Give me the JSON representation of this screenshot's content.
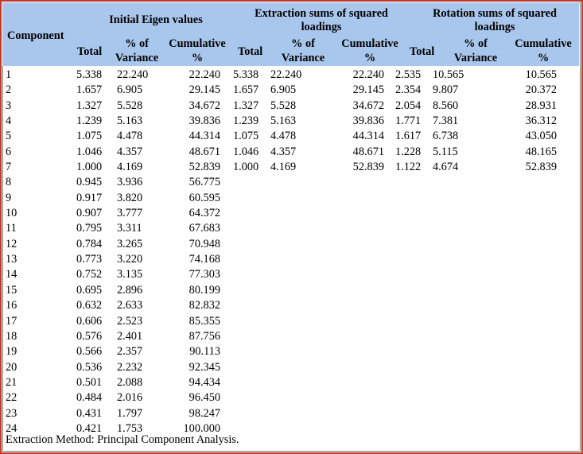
{
  "header": {
    "component": "Component",
    "group1": {
      "title": "Initial Eigen values",
      "total": "Total",
      "pct_line1": "% of",
      "pct_line2": "Variance",
      "cum_line1": "Cumulative",
      "cum_line2": "%"
    },
    "group2": {
      "title_line1": "Extraction sums of squared",
      "title_line2": "loadings",
      "total": "Total",
      "pct_line1": "% of",
      "pct_line2": "Variance",
      "cum_line1": "Cumulative",
      "cum_line2": "%"
    },
    "group3": {
      "title_line1": "Rotation sums of squared",
      "title_line2": "loadings",
      "total": "Total",
      "pct_line1": "% of",
      "pct_line2": "Variance",
      "cum_line1": "Cumulative",
      "cum_line2": "%"
    }
  },
  "rows": [
    [
      "1",
      "5.338",
      "22.240",
      "22.240",
      "5.338",
      "22.240",
      "22.240",
      "2.535",
      "10.565",
      "10.565"
    ],
    [
      "2",
      "1.657",
      "6.905",
      "29.145",
      "1.657",
      "6.905",
      "29.145",
      "2.354",
      "9.807",
      "20.372"
    ],
    [
      "3",
      "1.327",
      "5.528",
      "34.672",
      "1.327",
      "5.528",
      "34.672",
      "2.054",
      "8.560",
      "28.931"
    ],
    [
      "4",
      "1.239",
      "5.163",
      "39.836",
      "1.239",
      "5.163",
      "39.836",
      "1.771",
      "7.381",
      "36.312"
    ],
    [
      "5",
      "1.075",
      "4.478",
      "44.314",
      "1.075",
      "4.478",
      "44.314",
      "1.617",
      "6.738",
      "43.050"
    ],
    [
      "6",
      "1.046",
      "4.357",
      "48.671",
      "1.046",
      "4.357",
      "48.671",
      "1.228",
      "5.115",
      "48.165"
    ],
    [
      "7",
      "1.000",
      "4.169",
      "52.839",
      "1.000",
      "4.169",
      "52.839",
      "1.122",
      "4.674",
      "52.839"
    ],
    [
      "8",
      "0.945",
      "3.936",
      "56.775",
      "",
      "",
      "",
      "",
      "",
      ""
    ],
    [
      "9",
      "0.917",
      "3.820",
      "60.595",
      "",
      "",
      "",
      "",
      "",
      ""
    ],
    [
      "10",
      "0.907",
      "3.777",
      "64.372",
      "",
      "",
      "",
      "",
      "",
      ""
    ],
    [
      "11",
      "0.795",
      "3.311",
      "67.683",
      "",
      "",
      "",
      "",
      "",
      ""
    ],
    [
      "12",
      "0.784",
      "3.265",
      "70.948",
      "",
      "",
      "",
      "",
      "",
      ""
    ],
    [
      "13",
      "0.773",
      "3.220",
      "74.168",
      "",
      "",
      "",
      "",
      "",
      ""
    ],
    [
      "14",
      "0.752",
      "3.135",
      "77.303",
      "",
      "",
      "",
      "",
      "",
      ""
    ],
    [
      "15",
      "0.695",
      "2.896",
      "80.199",
      "",
      "",
      "",
      "",
      "",
      ""
    ],
    [
      "16",
      "0.632",
      "2.633",
      "82.832",
      "",
      "",
      "",
      "",
      "",
      ""
    ],
    [
      "17",
      "0.606",
      "2.523",
      "85.355",
      "",
      "",
      "",
      "",
      "",
      ""
    ],
    [
      "18",
      "0.576",
      "2.401",
      "87.756",
      "",
      "",
      "",
      "",
      "",
      ""
    ],
    [
      "19",
      "0.566",
      "2.357",
      "90.113",
      "",
      "",
      "",
      "",
      "",
      ""
    ],
    [
      "20",
      "0.536",
      "2.232",
      "92.345",
      "",
      "",
      "",
      "",
      "",
      ""
    ],
    [
      "21",
      "0.501",
      "2.088",
      "94.434",
      "",
      "",
      "",
      "",
      "",
      ""
    ],
    [
      "22",
      "0.484",
      "2.016",
      "96.450",
      "",
      "",
      "",
      "",
      "",
      ""
    ],
    [
      "23",
      "0.431",
      "1.797",
      "98.247",
      "",
      "",
      "",
      "",
      "",
      ""
    ],
    [
      "24",
      "0.421",
      "1.753",
      "100.000",
      "",
      "",
      "",
      "",
      "",
      ""
    ]
  ],
  "footer": "Extraction Method: Principal Component Analysis.",
  "colors": {
    "header_bg": "#a9c6ec",
    "border": "#c0392b"
  }
}
